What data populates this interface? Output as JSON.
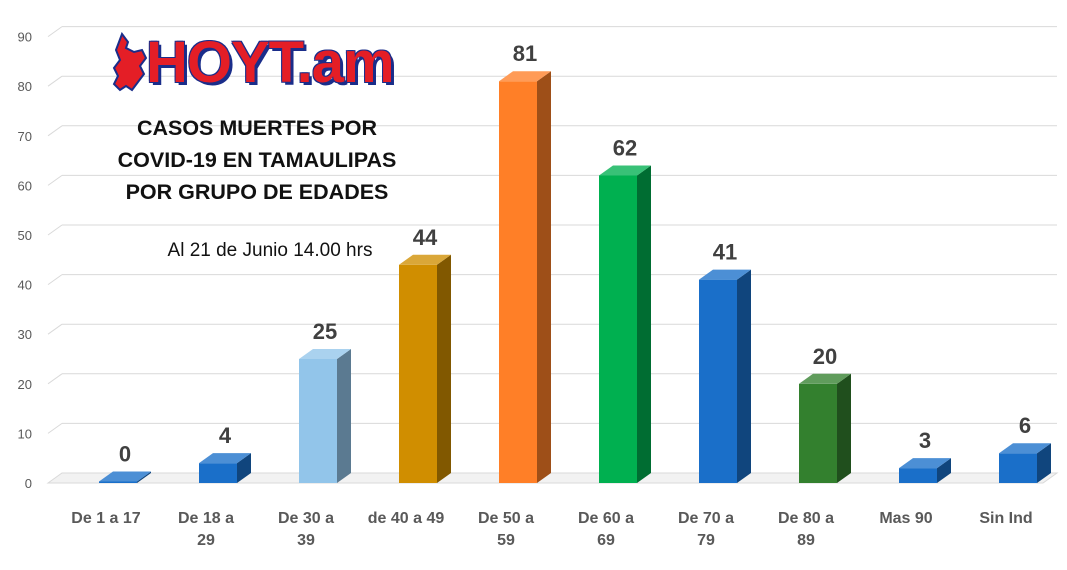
{
  "logo": {
    "text": "HOYT.am",
    "icon": "tamaulipas-map-icon"
  },
  "title": "CASOS MUERTES POR COVID-19 EN TAMAULIPAS POR GRUPO DE EDADES",
  "subtitle": "Al 21 de Junio 14.00 hrs",
  "chart_data": {
    "type": "bar",
    "title": "CASOS MUERTES POR COVID-19 EN TAMAULIPAS POR GRUPO DE EDADES",
    "subtitle": "Al 21 de Junio 14.00 hrs",
    "xlabel": "",
    "ylabel": "",
    "ylim": [
      0,
      90
    ],
    "yticks": [
      0,
      10,
      20,
      30,
      40,
      50,
      60,
      70,
      80,
      90
    ],
    "grid": true,
    "style": "3d-columns",
    "categories": [
      [
        "De 1 a 17"
      ],
      [
        "De 18 a",
        "29"
      ],
      [
        "De 30 a",
        "39"
      ],
      [
        "de 40 a 49"
      ],
      [
        "De 50 a",
        "59"
      ],
      [
        "De 60 a",
        "69"
      ],
      [
        "De 70 a",
        "79"
      ],
      [
        "De 80 a",
        "89"
      ],
      [
        "Mas 90"
      ],
      [
        "Sin Ind"
      ]
    ],
    "values": [
      0,
      4,
      25,
      44,
      81,
      62,
      41,
      20,
      3,
      6
    ],
    "colors": [
      "#1a6fc9",
      "#1a6fc9",
      "#92c5ea",
      "#d08e00",
      "#ff7f27",
      "#00b050",
      "#1a6fc9",
      "#33802e",
      "#1a6fc9",
      "#1a6fc9"
    ]
  }
}
